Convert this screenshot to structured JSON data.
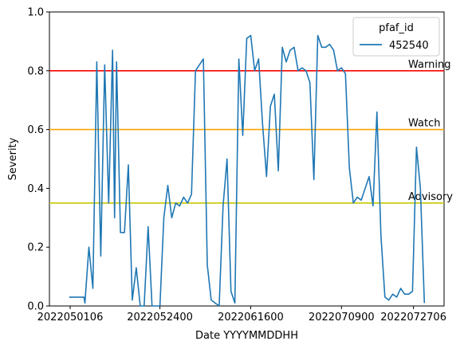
{
  "chart_data": {
    "type": "line",
    "xlabel": "Date YYYYMMDDHH",
    "ylabel": "Severity",
    "xlim": [
      2022042600,
      2022080400
    ],
    "ylim": [
      0.0,
      1.0
    ],
    "x_ticks": [
      {
        "value": 2022050106,
        "label": "2022050106"
      },
      {
        "value": 2022052400,
        "label": "2022052400"
      },
      {
        "value": 2022061600,
        "label": "2022061600"
      },
      {
        "value": 2022070900,
        "label": "2022070900"
      },
      {
        "value": 2022072706,
        "label": "2022072706"
      }
    ],
    "y_ticks": [
      {
        "value": 0.0,
        "label": "0.0"
      },
      {
        "value": 0.2,
        "label": "0.2"
      },
      {
        "value": 0.4,
        "label": "0.4"
      },
      {
        "value": 0.6,
        "label": "0.6"
      },
      {
        "value": 0.8,
        "label": "0.8"
      },
      {
        "value": 1.0,
        "label": "1.0"
      }
    ],
    "legend": {
      "title": "pfaf_id",
      "position": "upper-right"
    },
    "series": [
      {
        "name": "452540",
        "color": "#1f77b4",
        "x": [
          2022050100,
          2022050418,
          2022050500,
          2022050600,
          2022050700,
          2022050800,
          2022050900,
          2022051000,
          2022051100,
          2022051200,
          2022051212,
          2022051300,
          2022051400,
          2022051500,
          2022051600,
          2022051700,
          2022051800,
          2022051900,
          2022052000,
          2022052100,
          2022052200,
          2022052300,
          2022052400,
          2022052500,
          2022052600,
          2022052700,
          2022052800,
          2022052900,
          2022053000,
          2022053100,
          2022060100,
          2022060200,
          2022060300,
          2022060400,
          2022060500,
          2022060600,
          2022060700,
          2022060800,
          2022060900,
          2022061000,
          2022061100,
          2022061200,
          2022061300,
          2022061400,
          2022061500,
          2022061600,
          2022061700,
          2022061800,
          2022061900,
          2022062000,
          2022062100,
          2022062200,
          2022062300,
          2022062400,
          2022062500,
          2022062600,
          2022062700,
          2022062800,
          2022062900,
          2022063000,
          2022070100,
          2022070200,
          2022070300,
          2022070400,
          2022070500,
          2022070600,
          2022070700,
          2022070800,
          2022070900,
          2022071000,
          2022071100,
          2022071200,
          2022071300,
          2022071400,
          2022071500,
          2022071600,
          2022071700,
          2022071800,
          2022071900,
          2022072000,
          2022072100,
          2022072200,
          2022072300,
          2022072400,
          2022072500,
          2022072600,
          2022072700,
          2022072800,
          2022072900,
          2022073000
        ],
        "values": [
          0.03,
          0.03,
          0.01,
          0.2,
          0.06,
          0.83,
          0.17,
          0.82,
          0.35,
          0.87,
          0.3,
          0.83,
          0.25,
          0.25,
          0.48,
          0.02,
          0.13,
          0.0,
          0.0,
          0.27,
          0.0,
          0.0,
          0.0,
          0.3,
          0.41,
          0.3,
          0.35,
          0.34,
          0.37,
          0.35,
          0.38,
          0.8,
          0.82,
          0.84,
          0.14,
          0.02,
          0.01,
          0.0,
          0.34,
          0.5,
          0.05,
          0.01,
          0.84,
          0.58,
          0.91,
          0.92,
          0.8,
          0.84,
          0.62,
          0.44,
          0.68,
          0.72,
          0.46,
          0.88,
          0.83,
          0.87,
          0.88,
          0.8,
          0.81,
          0.8,
          0.76,
          0.43,
          0.92,
          0.88,
          0.88,
          0.89,
          0.87,
          0.8,
          0.81,
          0.79,
          0.47,
          0.35,
          0.37,
          0.36,
          0.4,
          0.44,
          0.34,
          0.66,
          0.24,
          0.03,
          0.02,
          0.04,
          0.03,
          0.06,
          0.04,
          0.04,
          0.05,
          0.54,
          0.4,
          0.01
        ]
      }
    ],
    "thresholds": [
      {
        "name": "Warning",
        "value": 0.8,
        "color": "#ff0000"
      },
      {
        "name": "Watch",
        "value": 0.6,
        "color": "#ffa500"
      },
      {
        "name": "Advisory",
        "value": 0.35,
        "color": "#c7c700"
      }
    ]
  }
}
